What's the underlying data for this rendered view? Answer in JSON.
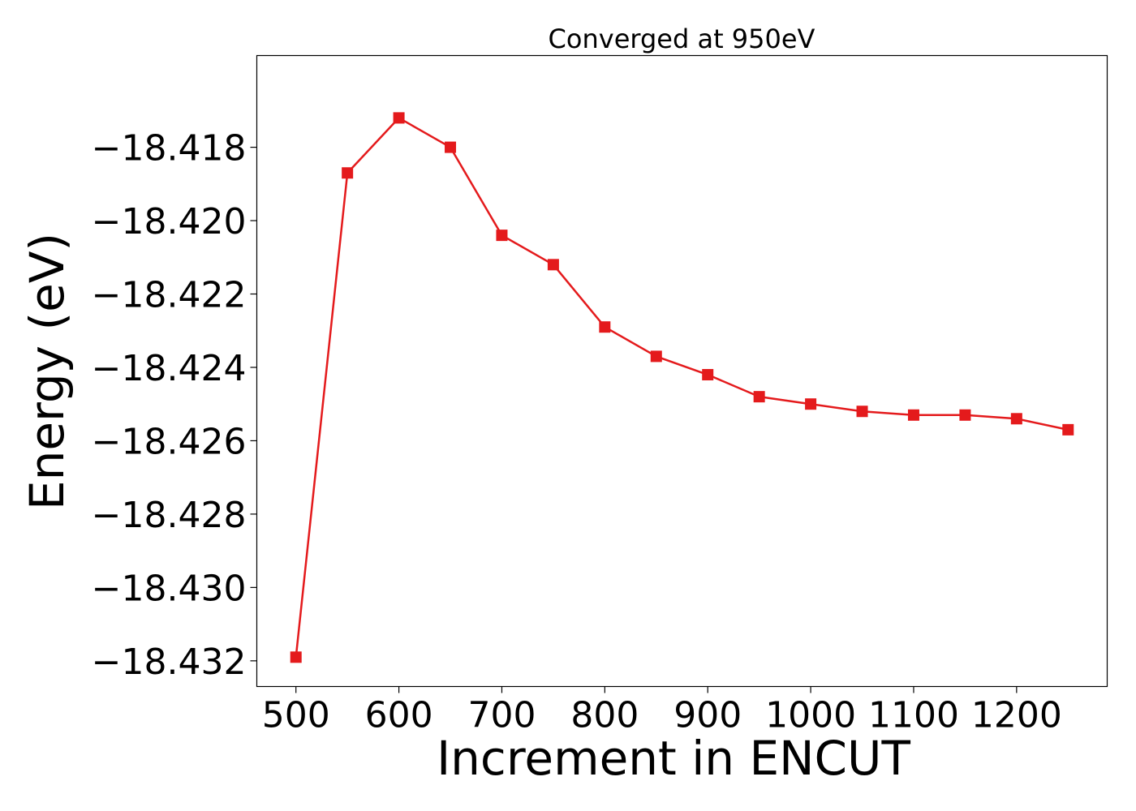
{
  "chart_data": {
    "type": "line",
    "title": "Converged at 950eV",
    "xlabel": "Increment in ENCUT",
    "ylabel": "Energy (eV)",
    "xlim": [
      462,
      1288
    ],
    "ylim": [
      -18.4327,
      -18.4155
    ],
    "x_ticks": [
      500,
      600,
      700,
      800,
      900,
      1000,
      1100,
      1200
    ],
    "x_tick_labels": [
      "500",
      "600",
      "700",
      "800",
      "900",
      "1000",
      "1100",
      "1200"
    ],
    "y_ticks": [
      -18.418,
      -18.42,
      -18.422,
      -18.424,
      -18.426,
      -18.428,
      -18.43,
      -18.432
    ],
    "y_tick_labels": [
      "−18.418",
      "−18.420",
      "−18.422",
      "−18.424",
      "−18.426",
      "−18.428",
      "−18.430",
      "−18.432"
    ],
    "grid": false,
    "series": [
      {
        "color": "#e41a1c",
        "marker": "square",
        "x": [
          500,
          550,
          600,
          650,
          700,
          750,
          800,
          850,
          900,
          950,
          1000,
          1050,
          1100,
          1150,
          1200,
          1250
        ],
        "y": [
          -18.4319,
          -18.4187,
          -18.4172,
          -18.418,
          -18.4204,
          -18.4212,
          -18.4229,
          -18.4237,
          -18.4242,
          -18.4248,
          -18.425,
          -18.4252,
          -18.4253,
          -18.4253,
          -18.4254,
          -18.4257
        ]
      }
    ]
  }
}
